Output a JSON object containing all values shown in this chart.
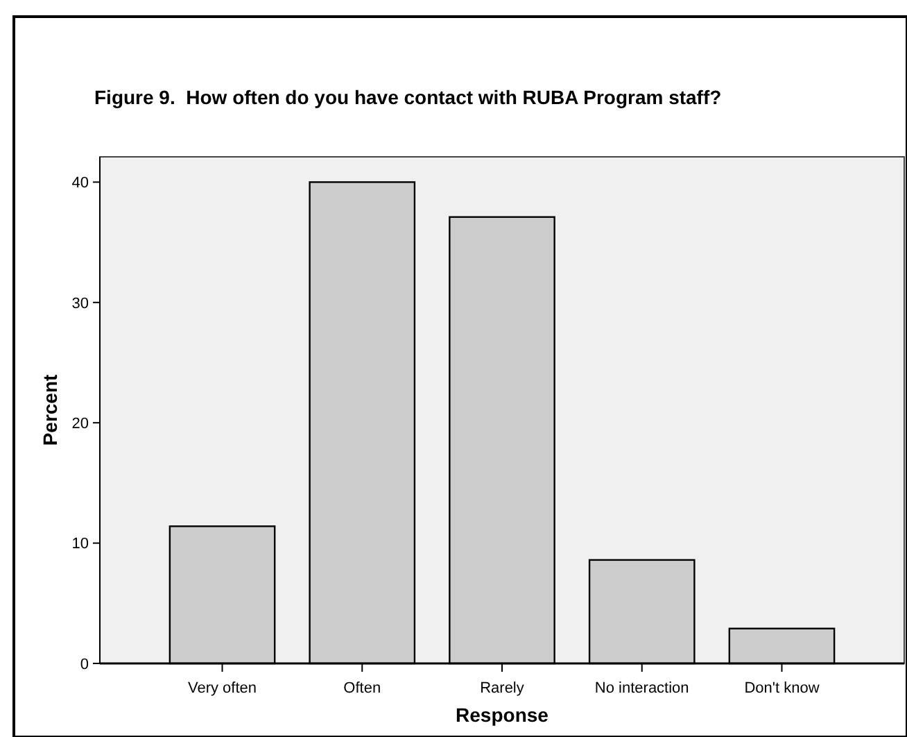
{
  "chart_data": {
    "type": "bar",
    "title": "Figure 9.  How often do you have contact with RUBA Program staff?",
    "xlabel": "Response",
    "ylabel": "Percent",
    "categories": [
      "Very often",
      "Often",
      "Rarely",
      "No interaction",
      "Don't know"
    ],
    "values": [
      11.4,
      40.0,
      37.1,
      8.6,
      2.9
    ],
    "color": "#cccccc",
    "ylim": [
      0,
      42.1
    ],
    "yticks": [
      0,
      10,
      20,
      30,
      40
    ],
    "grid": false
  }
}
